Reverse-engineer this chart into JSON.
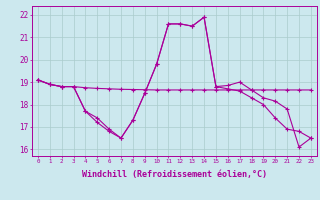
{
  "background_color": "#cce8ee",
  "grid_color": "#aacccc",
  "line_color": "#aa0099",
  "xlabel": "Windchill (Refroidissement éolien,°C)",
  "xlabel_fontsize": 6.0,
  "ylim": [
    15.7,
    22.4
  ],
  "yticks": [
    16,
    17,
    18,
    19,
    20,
    21,
    22
  ],
  "line1_x": [
    0,
    1,
    2,
    3,
    4,
    5,
    6,
    7,
    8,
    9,
    10,
    11,
    12,
    13,
    14,
    15,
    16,
    17,
    18,
    19,
    20,
    21,
    22,
    23
  ],
  "line1_y": [
    19.1,
    18.9,
    18.8,
    18.8,
    18.75,
    18.72,
    18.7,
    18.68,
    18.67,
    18.66,
    18.65,
    18.65,
    18.65,
    18.65,
    18.65,
    18.65,
    18.65,
    18.65,
    18.65,
    18.65,
    18.65,
    18.65,
    18.65,
    18.65
  ],
  "line2_x": [
    0,
    1,
    2,
    3,
    4,
    5,
    6,
    7,
    8,
    9,
    10,
    11,
    12,
    13,
    14,
    15,
    16,
    17,
    18,
    19,
    20,
    21,
    22,
    23
  ],
  "line2_y": [
    19.1,
    18.9,
    18.8,
    18.8,
    17.7,
    17.2,
    16.8,
    16.5,
    17.3,
    18.5,
    19.8,
    21.6,
    21.6,
    21.5,
    21.9,
    18.8,
    18.85,
    19.0,
    18.65,
    18.3,
    18.15,
    17.8,
    16.1,
    16.5
  ],
  "line3_x": [
    0,
    1,
    2,
    3,
    4,
    5,
    6,
    7,
    8,
    9,
    10,
    11,
    12,
    13,
    14,
    15,
    16,
    17,
    18,
    19,
    20,
    21,
    22,
    23
  ],
  "line3_y": [
    19.1,
    18.9,
    18.8,
    18.8,
    17.7,
    17.4,
    16.9,
    16.5,
    17.3,
    18.5,
    19.8,
    21.6,
    21.6,
    21.5,
    21.9,
    18.8,
    18.7,
    18.6,
    18.3,
    18.0,
    17.4,
    16.9,
    16.8,
    16.5
  ]
}
